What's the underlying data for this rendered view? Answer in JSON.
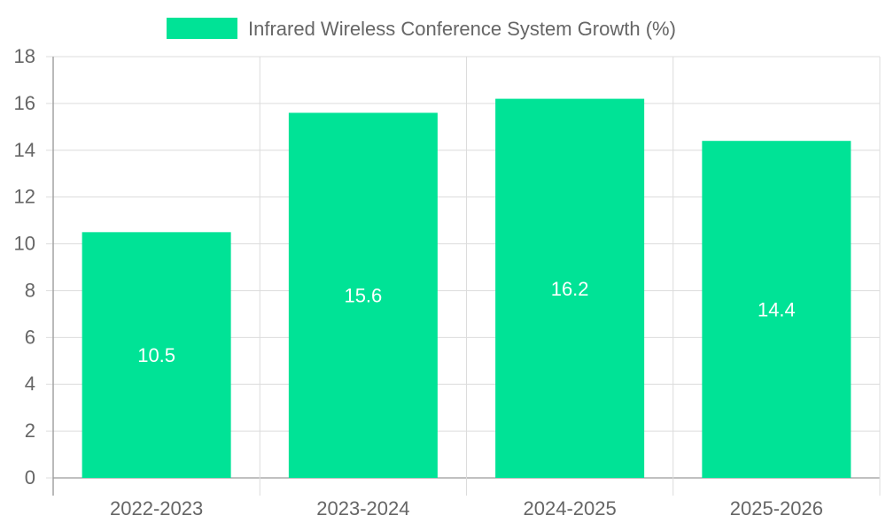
{
  "chart_data": {
    "type": "bar",
    "title": "",
    "xlabel": "",
    "ylabel": "",
    "categories": [
      "2022-2023",
      "2023-2024",
      "2024-2025",
      "2025-2026"
    ],
    "series": [
      {
        "name": "Infrared Wireless Conference System Growth (%)",
        "values": [
          10.5,
          15.6,
          16.2,
          14.4
        ],
        "color": "#00e396"
      }
    ],
    "ylim": [
      0,
      18
    ],
    "yticks": [
      0,
      2,
      4,
      6,
      8,
      10,
      12,
      14,
      16,
      18
    ],
    "grid": true,
    "legend": "top-center",
    "data_labels": [
      "10.5",
      "15.6",
      "16.2",
      "14.4"
    ]
  }
}
